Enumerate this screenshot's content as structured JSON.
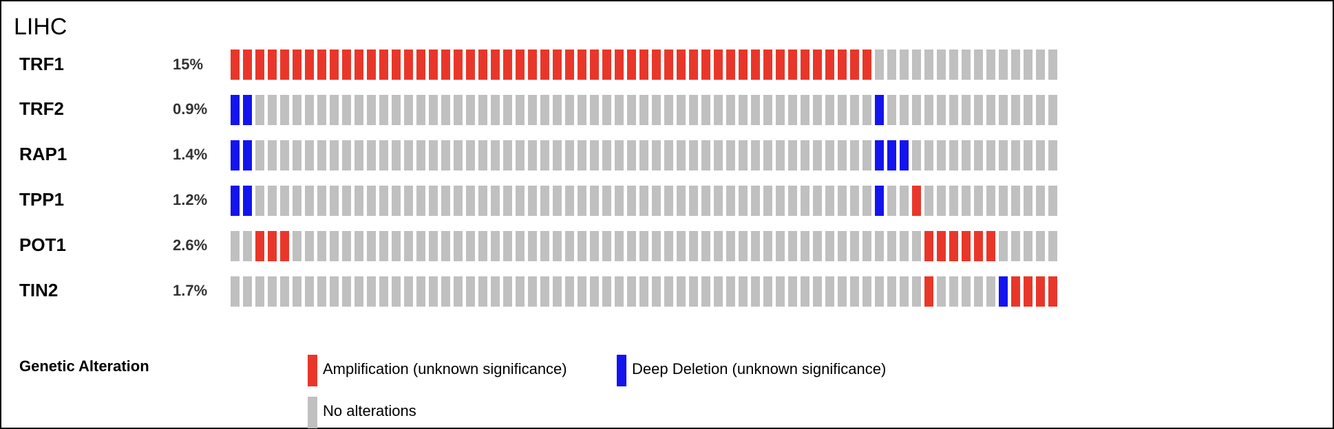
{
  "title": "LIHC",
  "legend": {
    "title": "Genetic Alteration",
    "items": [
      {
        "key": "amp",
        "label": "Amplification (unknown significance)",
        "color": "#E8372A"
      },
      {
        "key": "del",
        "label": "Deep Deletion (unknown significance)",
        "color": "#1414EE"
      },
      {
        "key": "none",
        "label": "No alterations",
        "color": "#C0C0C0"
      }
    ]
  },
  "chart_data": {
    "type": "heatmap",
    "title": "LIHC",
    "sample_count": 67,
    "colors": {
      "amp": "#E8372A",
      "del": "#1414EE",
      "none": "#C0C0C0"
    },
    "genes": [
      {
        "name": "TRF1",
        "percent": "15%",
        "amp": [
          [
            0,
            51
          ]
        ],
        "del": []
      },
      {
        "name": "TRF2",
        "percent": "0.9%",
        "amp": [],
        "del": [
          [
            0,
            1
          ],
          [
            52,
            52
          ]
        ]
      },
      {
        "name": "RAP1",
        "percent": "1.4%",
        "amp": [],
        "del": [
          [
            0,
            1
          ],
          [
            52,
            54
          ]
        ]
      },
      {
        "name": "TPP1",
        "percent": "1.2%",
        "amp": [
          [
            55,
            55
          ]
        ],
        "del": [
          [
            0,
            1
          ],
          [
            52,
            52
          ]
        ]
      },
      {
        "name": "POT1",
        "percent": "2.6%",
        "amp": [
          [
            2,
            4
          ],
          [
            56,
            61
          ]
        ],
        "del": []
      },
      {
        "name": "TIN2",
        "percent": "1.7%",
        "amp": [
          [
            56,
            56
          ],
          [
            63,
            66
          ]
        ],
        "del": [
          [
            62,
            62
          ]
        ]
      }
    ]
  }
}
